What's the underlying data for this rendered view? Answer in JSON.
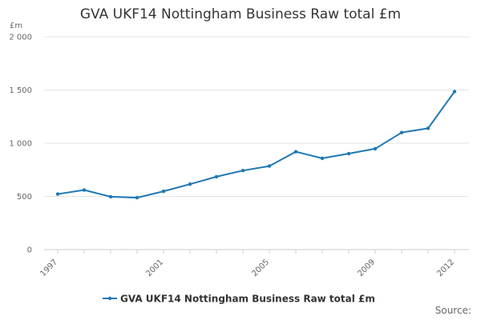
{
  "colors": {
    "series": "#1f78b4",
    "grid": "#e6e6e6",
    "axis": "#cccccc"
  },
  "chart_data": {
    "type": "line",
    "title": "GVA UKF14 Nottingham Business Raw total £m",
    "ylabel": "£m",
    "xlabel": "",
    "ylim": [
      0,
      2000
    ],
    "yticks": [
      0,
      500,
      1000,
      1500,
      2000
    ],
    "ytick_labels": [
      "0",
      "500",
      "1 000",
      "1 500",
      "2 000"
    ],
    "xticks": [
      "1997",
      "2001",
      "2005",
      "2009",
      "2012"
    ],
    "x": [
      1997,
      1998,
      1999,
      2000,
      2001,
      2002,
      2003,
      2004,
      2005,
      2006,
      2007,
      2008,
      2009,
      2010,
      2011,
      2012
    ],
    "series": [
      {
        "name": "GVA UKF14 Nottingham Business Raw total £m",
        "values": [
          522,
          560,
          497,
          488,
          548,
          615,
          685,
          743,
          785,
          920,
          858,
          902,
          948,
          1100,
          1140,
          1485
        ]
      }
    ],
    "grid": true,
    "legend": "bottom-center",
    "source_label": "Source:"
  }
}
